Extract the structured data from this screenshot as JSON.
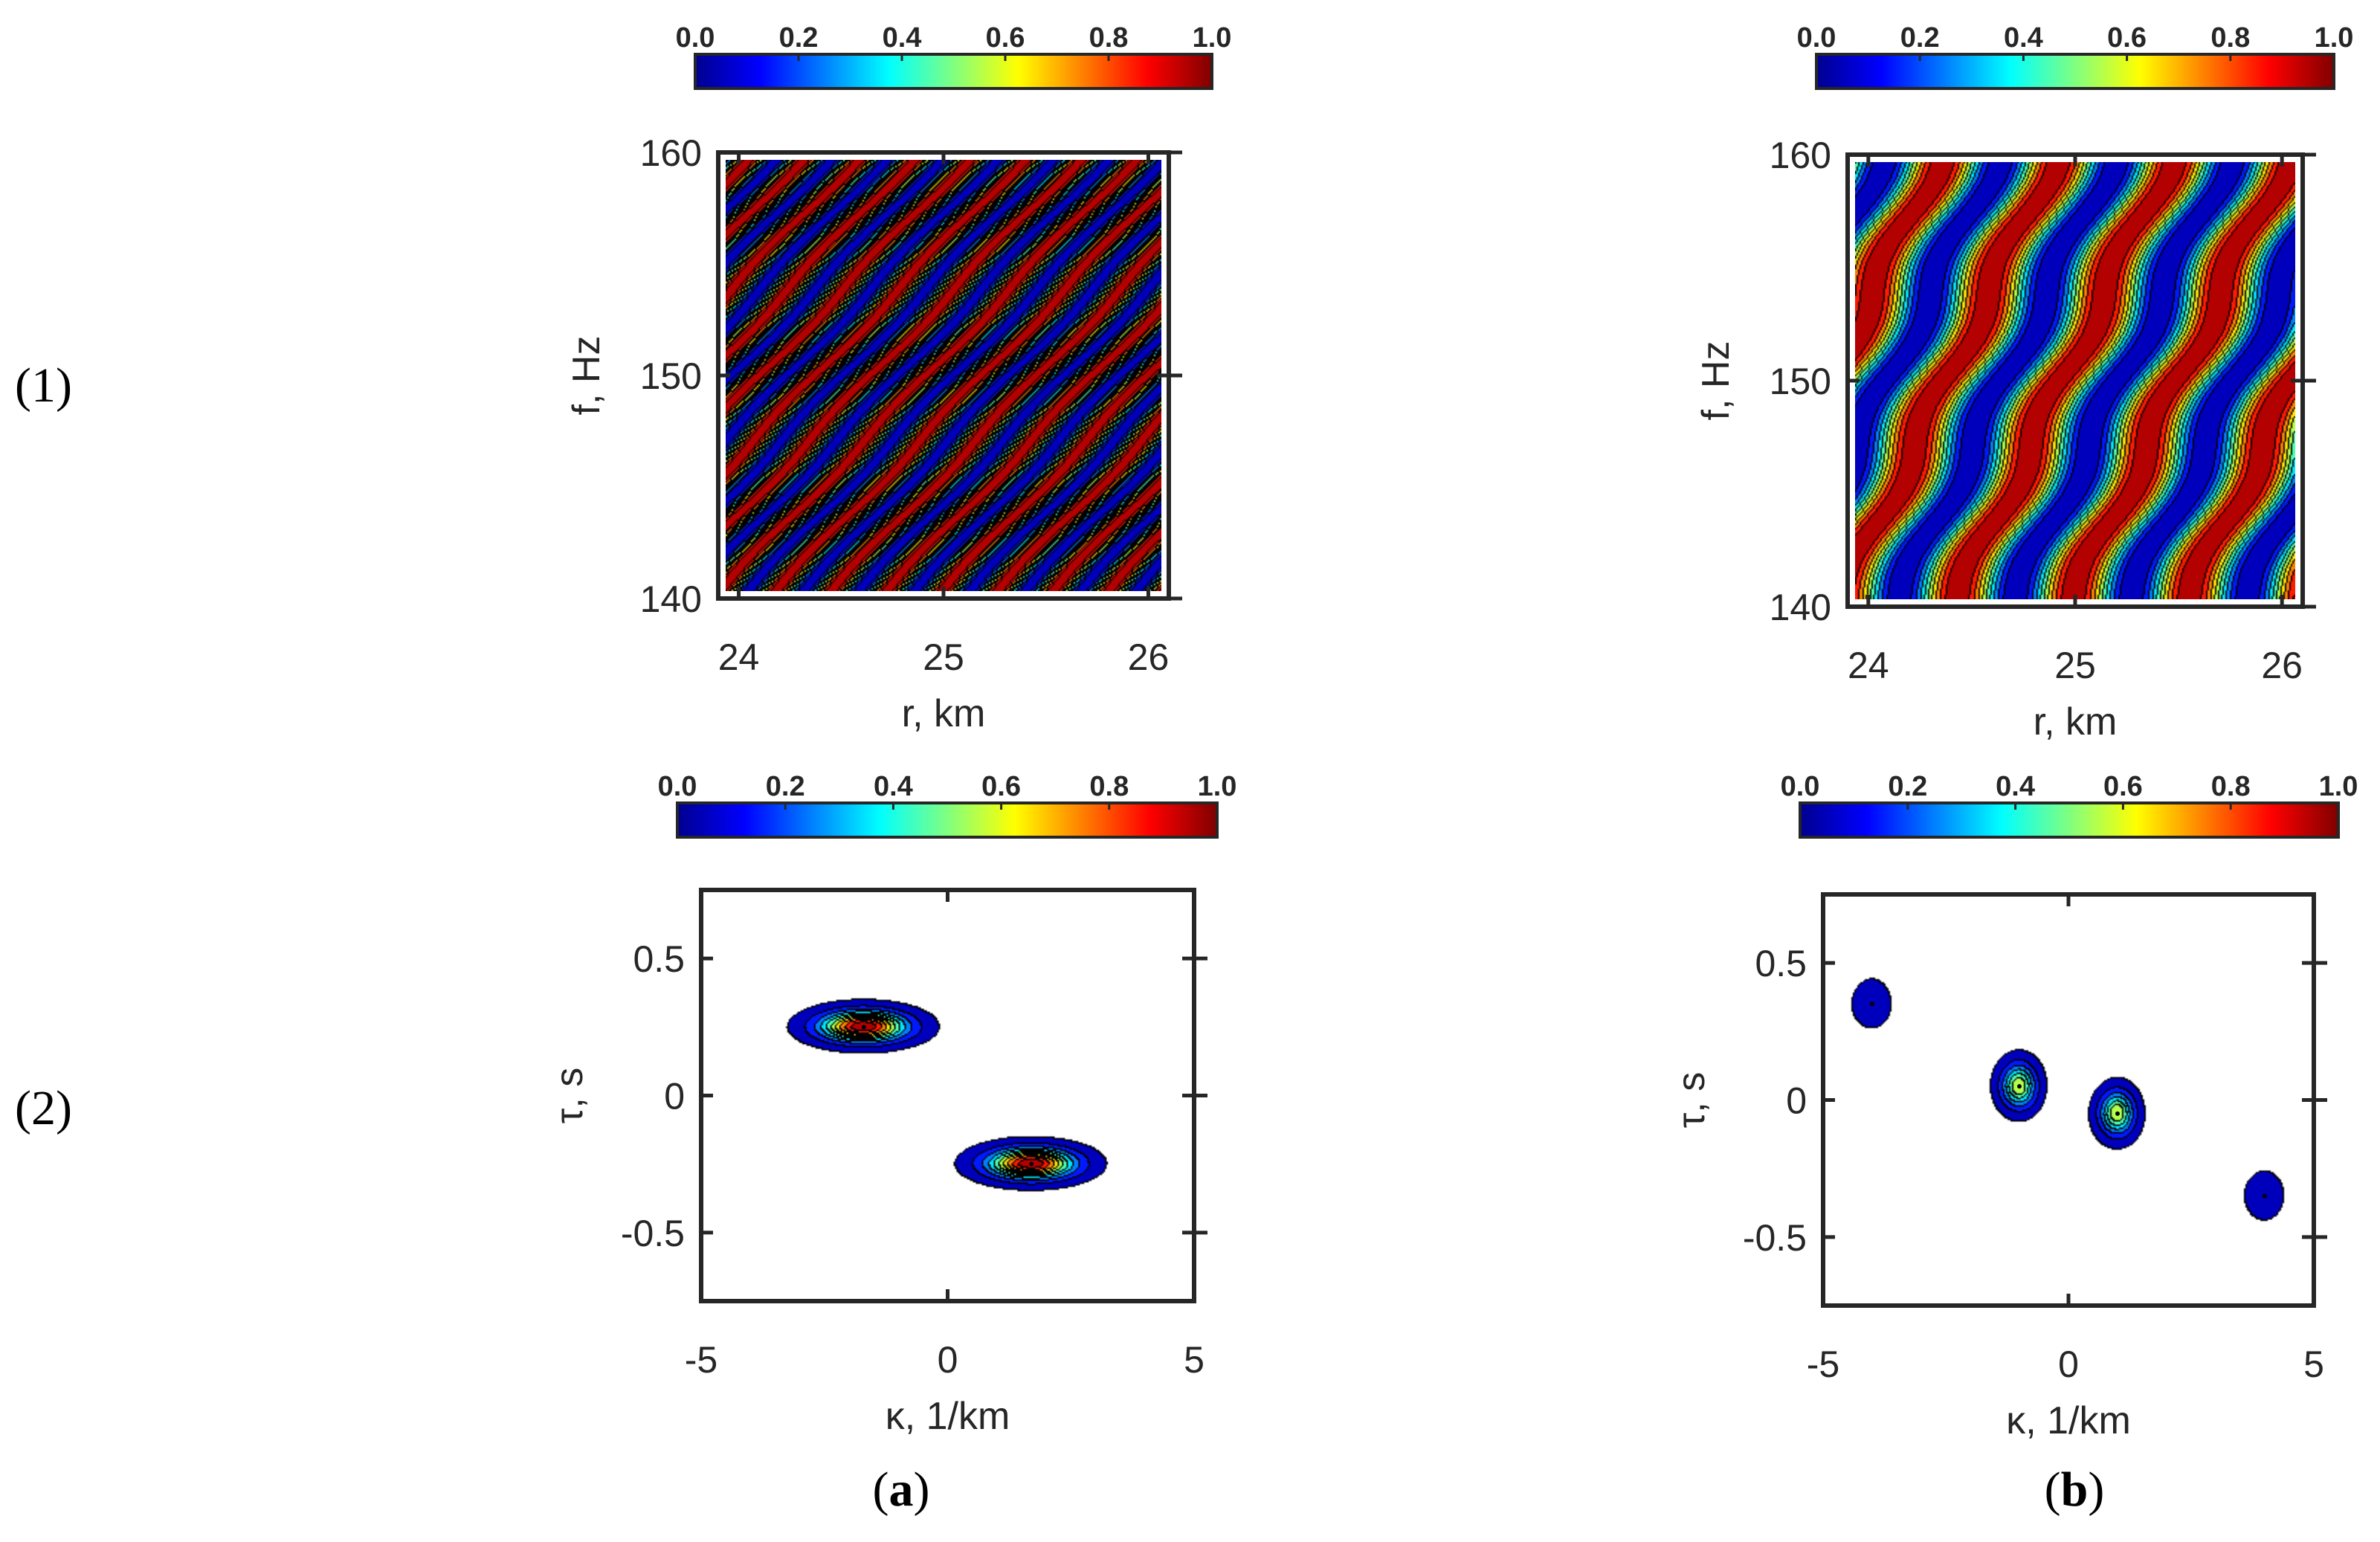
{
  "row_labels": [
    "(1)",
    "(2)"
  ],
  "col_labels": [
    {
      "open": "(",
      "letter": "a",
      "close": ")"
    },
    {
      "open": "(",
      "letter": "b",
      "close": ")"
    }
  ],
  "colorbar": {
    "ticks": [
      "0.0",
      "0.2",
      "0.4",
      "0.6",
      "0.8",
      "1.0"
    ],
    "colors": [
      "#00008f",
      "#0000ff",
      "#0080ff",
      "#00ffff",
      "#80ff80",
      "#ffff00",
      "#ff8000",
      "#ff0000",
      "#800000"
    ]
  },
  "chart_data": [
    {
      "id": "a1",
      "type": "heatmap",
      "xlabel": "r, km",
      "ylabel": "f, Hz",
      "xticks": [
        "24",
        "25",
        "26"
      ],
      "yticks": [
        "140",
        "150",
        "160"
      ],
      "xlim": [
        23.9,
        26.1
      ],
      "ylim": [
        140,
        160
      ],
      "pattern": {
        "kind": "diagonal-stripes",
        "stripe_period_km": 0.28,
        "slope_hz_per_km": 9.6
      }
    },
    {
      "id": "b1",
      "type": "heatmap",
      "xlabel": "r, km",
      "ylabel": "f, Hz",
      "xticks": [
        "24",
        "25",
        "26"
      ],
      "yticks": [
        "140",
        "150",
        "160"
      ],
      "xlim": [
        23.9,
        26.1
      ],
      "ylim": [
        140,
        160
      ],
      "pattern": {
        "kind": "diagonal-stripes",
        "stripe_period_km": 0.58,
        "slope_hz_per_km": 19
      }
    },
    {
      "id": "a2",
      "type": "heatmap",
      "xlabel": "κ, 1/km",
      "ylabel": "τ, s",
      "xticks": [
        "-5",
        "0",
        "5"
      ],
      "yticks": [
        "-0.5",
        "0",
        "0.5"
      ],
      "xlim": [
        -5,
        5
      ],
      "ylim": [
        -0.75,
        0.75
      ],
      "peaks": [
        {
          "kappa": -1.7,
          "tau": 0.25,
          "value": 1.0
        },
        {
          "kappa": 1.7,
          "tau": -0.25,
          "value": 1.0
        }
      ]
    },
    {
      "id": "b2",
      "type": "heatmap",
      "xlabel": "κ, 1/km",
      "ylabel": "τ, s",
      "xticks": [
        "-5",
        "0",
        "5"
      ],
      "yticks": [
        "-0.5",
        "0",
        "0.5"
      ],
      "xlim": [
        -5,
        5
      ],
      "ylim": [
        -0.75,
        0.75
      ],
      "peaks": [
        {
          "kappa": -4.0,
          "tau": 0.35,
          "value": 0.1
        },
        {
          "kappa": -1.0,
          "tau": 0.05,
          "value": 0.6
        },
        {
          "kappa": 1.0,
          "tau": -0.05,
          "value": 0.6
        },
        {
          "kappa": 4.0,
          "tau": -0.35,
          "value": 0.1
        }
      ]
    }
  ]
}
